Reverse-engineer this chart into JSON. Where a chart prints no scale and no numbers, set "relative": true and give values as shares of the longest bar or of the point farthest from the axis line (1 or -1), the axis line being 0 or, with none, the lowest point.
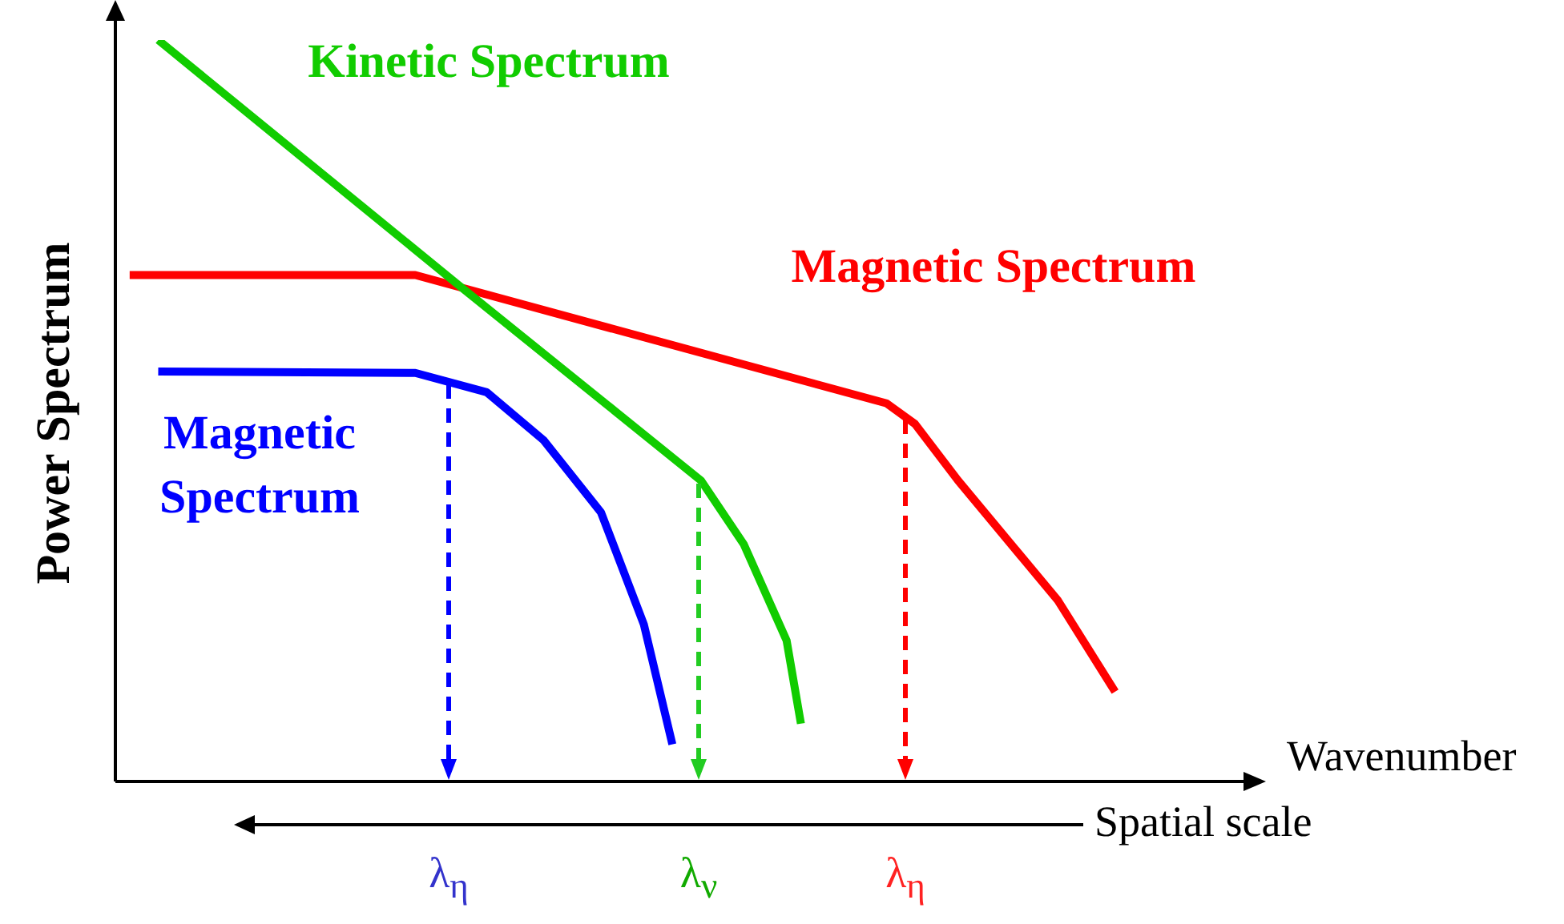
{
  "chart_data": {
    "type": "line",
    "relative": true,
    "xlabel": "Wavenumber",
    "ylabel": "Power Spectrum",
    "marker": "none",
    "line_style": "solid",
    "categories": [
      null,
      null,
      null,
      null,
      null,
      null,
      null,
      null,
      null,
      null,
      null,
      null,
      null,
      null,
      null,
      null,
      null,
      null,
      null,
      null,
      null,
      null,
      null,
      null,
      null,
      null,
      null,
      null,
      null,
      null,
      null,
      null,
      null,
      null,
      null,
      null,
      null,
      null,
      null,
      null,
      null,
      null,
      null,
      null,
      null,
      null,
      null,
      null,
      null,
      null,
      null,
      null,
      null,
      null,
      null,
      null,
      null,
      null,
      null,
      null,
      null,
      null,
      null,
      null,
      null,
      null,
      null,
      null,
      null,
      null,
      null,
      null,
      null,
      null,
      null,
      null,
      null,
      null,
      null,
      null,
      null
    ],
    "series": [
      {
        "name": "Kinetic Spectrum",
        "color": "#11cc00",
        "values": [
          null,
          null,
          null,
          1,
          null,
          null,
          null,
          null,
          null,
          null,
          null,
          null,
          null,
          null,
          null,
          null,
          null,
          null,
          null,
          null,
          null,
          null,
          null,
          null,
          0.67,
          null,
          null,
          null,
          null,
          null,
          null,
          null,
          null,
          null,
          null,
          null,
          null,
          null,
          null,
          null,
          null,
          0.406,
          null,
          null,
          0.32,
          null,
          null,
          0.19,
          0.078,
          null,
          null,
          null,
          null,
          null,
          null,
          null,
          null,
          null,
          null,
          null,
          null,
          null,
          null,
          null,
          null,
          null,
          null,
          null,
          null,
          null,
          null,
          null,
          null,
          null,
          null,
          null,
          null,
          null,
          null,
          null,
          null
        ]
      },
      {
        "name": "Magnetic Spectrum",
        "color": "#ff0000",
        "values": [
          null,
          0.683,
          null,
          null,
          null,
          null,
          null,
          null,
          null,
          null,
          null,
          null,
          null,
          null,
          null,
          null,
          null,
          null,
          null,
          null,
          null,
          0.683,
          null,
          null,
          null,
          null,
          null,
          null,
          null,
          null,
          null,
          null,
          null,
          null,
          null,
          null,
          null,
          null,
          null,
          null,
          null,
          null,
          null,
          null,
          null,
          null,
          null,
          null,
          null,
          null,
          null,
          null,
          null,
          null,
          0.51,
          null,
          0.482,
          null,
          null,
          0.406,
          null,
          null,
          null,
          null,
          null,
          null,
          0.244,
          null,
          null,
          null,
          0.121,
          null,
          null,
          null,
          null,
          null,
          null,
          null,
          null,
          null,
          null
        ]
      },
      {
        "name": "Magnetic Spectrum",
        "color": "#0000ff",
        "values": [
          null,
          null,
          null,
          0.553,
          null,
          null,
          null,
          null,
          null,
          null,
          null,
          null,
          null,
          null,
          null,
          null,
          null,
          null,
          null,
          null,
          null,
          0.551,
          null,
          null,
          null,
          null,
          0.525,
          null,
          null,
          null,
          0.46,
          null,
          null,
          null,
          0.363,
          null,
          null,
          0.212,
          null,
          0.05,
          null,
          null,
          null,
          null,
          null,
          null,
          null,
          null,
          null,
          null,
          null,
          null,
          null,
          null,
          null,
          null,
          null,
          null,
          null,
          null,
          null,
          null,
          null,
          null,
          null,
          null,
          null,
          null,
          null,
          null,
          null,
          null,
          null,
          null,
          null,
          null,
          null,
          null,
          null,
          null,
          null
        ]
      }
    ],
    "annotations": [
      "Spatial scale",
      "λ$_{η}$",
      "λ$_{ν}$",
      "λ$_{η}$"
    ]
  }
}
